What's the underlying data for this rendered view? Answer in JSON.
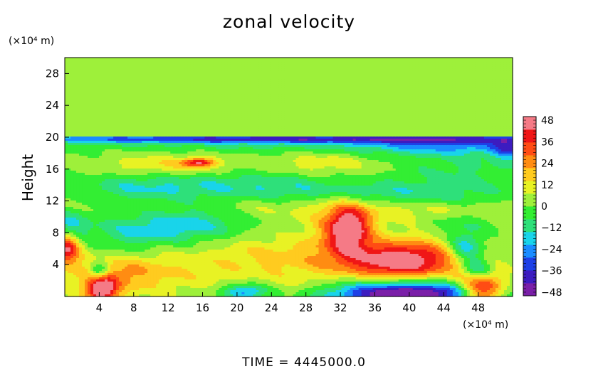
{
  "chart_data": {
    "type": "heatmap",
    "title": "zonal velocity",
    "ylabel": "Height",
    "xlabel": "",
    "x_unit": "(×10⁴ m)",
    "y_unit": "(×10⁴ m)",
    "xlim": [
      0,
      52
    ],
    "ylim": [
      0,
      30
    ],
    "x_ticks": [
      4,
      8,
      12,
      16,
      20,
      24,
      28,
      32,
      36,
      40,
      44,
      48
    ],
    "y_ticks": [
      4,
      8,
      12,
      16,
      20,
      24,
      28
    ],
    "colorbar": {
      "vmin": -50,
      "vmax": 50,
      "ticks": [
        48,
        36,
        24,
        12,
        0,
        -12,
        -24,
        -36,
        -48
      ],
      "tick_labels": [
        "48",
        "36",
        "24",
        "12",
        "0",
        "−12",
        "−24",
        "−36",
        "−48"
      ],
      "colors": [
        "#7a1fa8",
        "#3c1cc0",
        "#1e40e6",
        "#1a8cff",
        "#19d4ea",
        "#2ee07a",
        "#33ee33",
        "#9ef03a",
        "#e8f224",
        "#ffcb1f",
        "#ff8c12",
        "#ff4c14",
        "#f01616",
        "#f57a86"
      ]
    },
    "background_value": 2,
    "features": [
      {
        "x": 25,
        "y": 19.8,
        "sx": 26,
        "sy": 0.35,
        "value": -32
      },
      {
        "x": 26,
        "y": 19.3,
        "sx": 24,
        "sy": 0.9,
        "value": -12
      },
      {
        "x": 45,
        "y": 19.0,
        "sx": 8,
        "sy": 0.9,
        "value": -20
      },
      {
        "x": 15.5,
        "y": 16.8,
        "sx": 1.3,
        "sy": 0.4,
        "value": 36
      },
      {
        "x": 12,
        "y": 16.5,
        "sx": 5,
        "sy": 1.0,
        "value": 12
      },
      {
        "x": 30,
        "y": 16.8,
        "sx": 4,
        "sy": 1.0,
        "value": 10
      },
      {
        "x": 20,
        "y": 14.0,
        "sx": 10,
        "sy": 1.2,
        "value": -14
      },
      {
        "x": 38,
        "y": 13.0,
        "sx": 10,
        "sy": 1.0,
        "value": -14
      },
      {
        "x": 8,
        "y": 13.5,
        "sx": 5,
        "sy": 1.2,
        "value": -10
      },
      {
        "x": 46,
        "y": 16.0,
        "sx": 5,
        "sy": 1.5,
        "value": -10
      },
      {
        "x": 33,
        "y": 8.5,
        "sx": 1.6,
        "sy": 1.9,
        "value": 40
      },
      {
        "x": 32,
        "y": 8.5,
        "sx": 3.5,
        "sy": 3.0,
        "value": 20
      },
      {
        "x": 39,
        "y": 4.5,
        "sx": 4.2,
        "sy": 1.6,
        "value": 38
      },
      {
        "x": 38.5,
        "y": 4.5,
        "sx": 6.5,
        "sy": 2.6,
        "value": 16
      },
      {
        "x": 40,
        "y": 0.3,
        "sx": 6,
        "sy": 0.9,
        "value": -46
      },
      {
        "x": 41,
        "y": 1.0,
        "sx": 10,
        "sy": 1.5,
        "value": -20
      },
      {
        "x": 48.5,
        "y": 0.8,
        "sx": 1.8,
        "sy": 1.3,
        "value": 46
      },
      {
        "x": 48,
        "y": 1.5,
        "sx": 3.5,
        "sy": 2.0,
        "value": 12
      },
      {
        "x": 4.2,
        "y": 0.9,
        "sx": 1.2,
        "sy": 1.1,
        "value": 44
      },
      {
        "x": 5,
        "y": 1.5,
        "sx": 3,
        "sy": 1.8,
        "value": 10
      },
      {
        "x": 0.3,
        "y": 6.0,
        "sx": 1.0,
        "sy": 1.4,
        "value": 40
      },
      {
        "x": 0.5,
        "y": 9.0,
        "sx": 1.5,
        "sy": 1.2,
        "value": -18
      },
      {
        "x": 4.0,
        "y": 3.2,
        "sx": 0.8,
        "sy": 0.8,
        "value": -30
      },
      {
        "x": 10,
        "y": 8.5,
        "sx": 5,
        "sy": 1.3,
        "value": -16
      },
      {
        "x": 16,
        "y": 9.5,
        "sx": 4,
        "sy": 1.6,
        "value": -12
      },
      {
        "x": 7,
        "y": 6.0,
        "sx": 3,
        "sy": 1.6,
        "value": -8
      },
      {
        "x": 6,
        "y": 3.5,
        "sx": 4,
        "sy": 1.6,
        "value": 12
      },
      {
        "x": 12,
        "y": 3.0,
        "sx": 6,
        "sy": 2.0,
        "value": 10
      },
      {
        "x": 24,
        "y": 5.0,
        "sx": 5,
        "sy": 2.0,
        "value": 12
      },
      {
        "x": 21,
        "y": 0.6,
        "sx": 1.8,
        "sy": 0.7,
        "value": -28
      },
      {
        "x": 27,
        "y": 1.2,
        "sx": 4,
        "sy": 1.5,
        "value": 8
      },
      {
        "x": 46.5,
        "y": 6.0,
        "sx": 1.4,
        "sy": 1.3,
        "value": -28
      },
      {
        "x": 48,
        "y": 3.5,
        "sx": 1.2,
        "sy": 1.0,
        "value": -26
      },
      {
        "x": 46,
        "y": 9.5,
        "sx": 3,
        "sy": 1.6,
        "value": -10
      },
      {
        "x": 44,
        "y": 10.8,
        "sx": 6,
        "sy": 0.9,
        "value": 10
      },
      {
        "x": 22,
        "y": 11.0,
        "sx": 5,
        "sy": 1.0,
        "value": 6
      },
      {
        "x": 36,
        "y": 7.0,
        "sx": 3,
        "sy": 2.0,
        "value": -8
      },
      {
        "x": 28,
        "y": 8.0,
        "sx": 3,
        "sy": 2.0,
        "value": -6
      },
      {
        "x": 51.5,
        "y": 18.5,
        "sx": 1.2,
        "sy": 1.0,
        "value": -24
      }
    ]
  },
  "footer": {
    "label": "TIME  =  4445000.0"
  }
}
